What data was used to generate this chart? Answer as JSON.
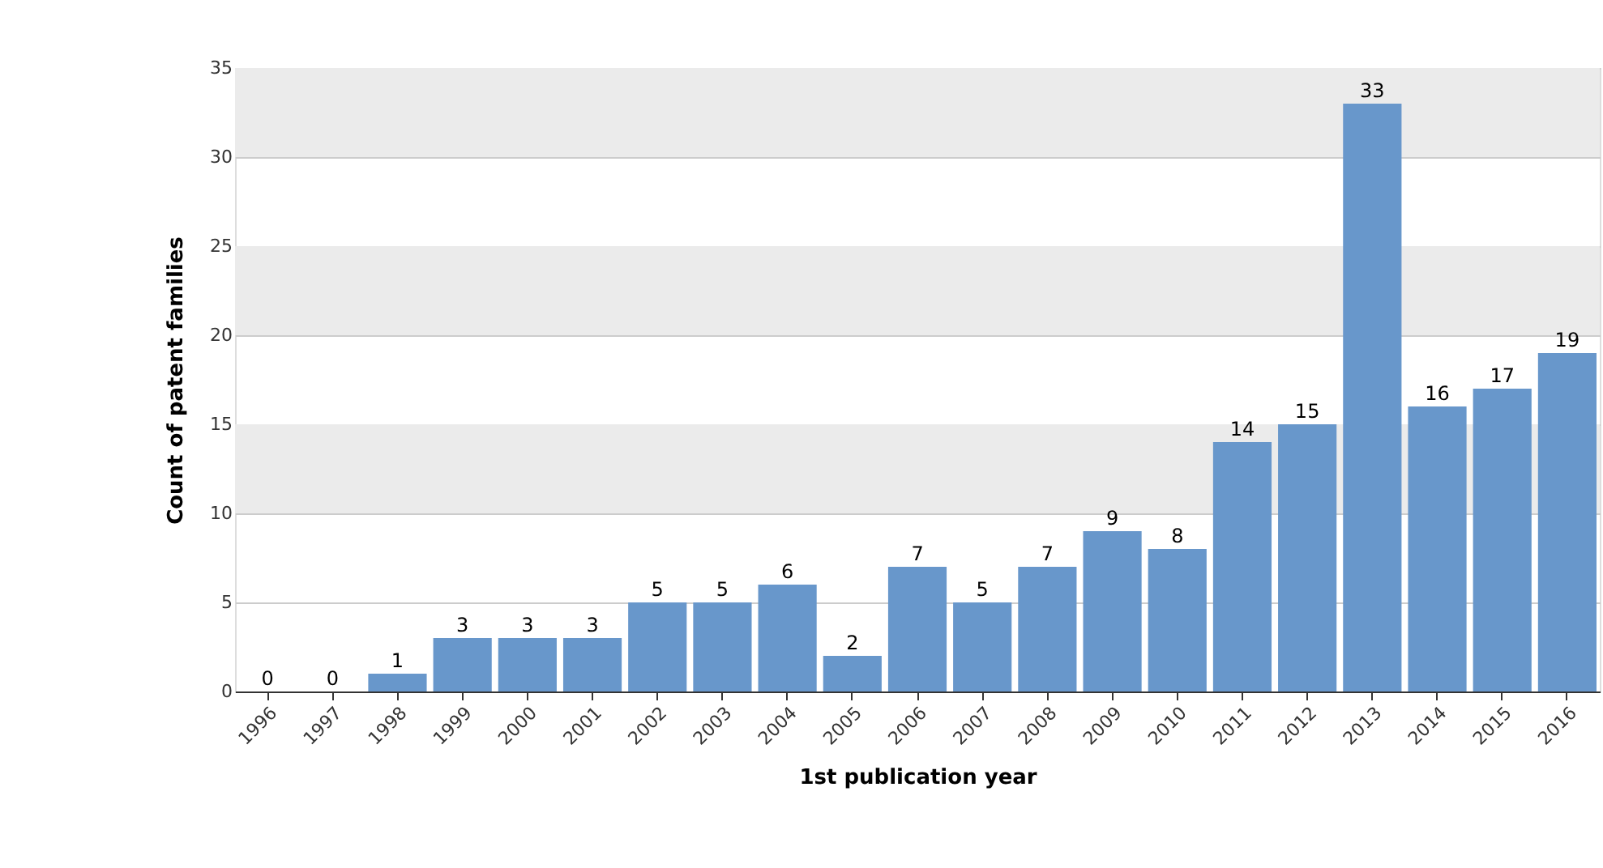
{
  "chart_data": {
    "type": "bar",
    "xlabel": "1st publication year",
    "ylabel": "Count of patent families",
    "categories": [
      "1996",
      "1997",
      "1998",
      "1999",
      "2000",
      "2001",
      "2002",
      "2003",
      "2004",
      "2005",
      "2006",
      "2007",
      "2008",
      "2009",
      "2010",
      "2011",
      "2012",
      "2013",
      "2014",
      "2015",
      "2016"
    ],
    "values": [
      0,
      0,
      1,
      3,
      3,
      3,
      5,
      5,
      6,
      2,
      7,
      5,
      7,
      9,
      8,
      14,
      15,
      33,
      16,
      17,
      19
    ],
    "color": "#6897cb",
    "ylim": [
      0,
      35
    ],
    "yticks": [
      0,
      5,
      10,
      15,
      20,
      25,
      30,
      35
    ],
    "grid": "y",
    "data_labels": true,
    "bands": [
      {
        "axis": "y",
        "from": 10,
        "to": 15,
        "color": "#ebebeb"
      },
      {
        "axis": "y",
        "from": 20,
        "to": 25,
        "color": "#ebebeb"
      },
      {
        "axis": "y",
        "from": 30,
        "to": 35,
        "color": "#ebebeb"
      }
    ]
  }
}
